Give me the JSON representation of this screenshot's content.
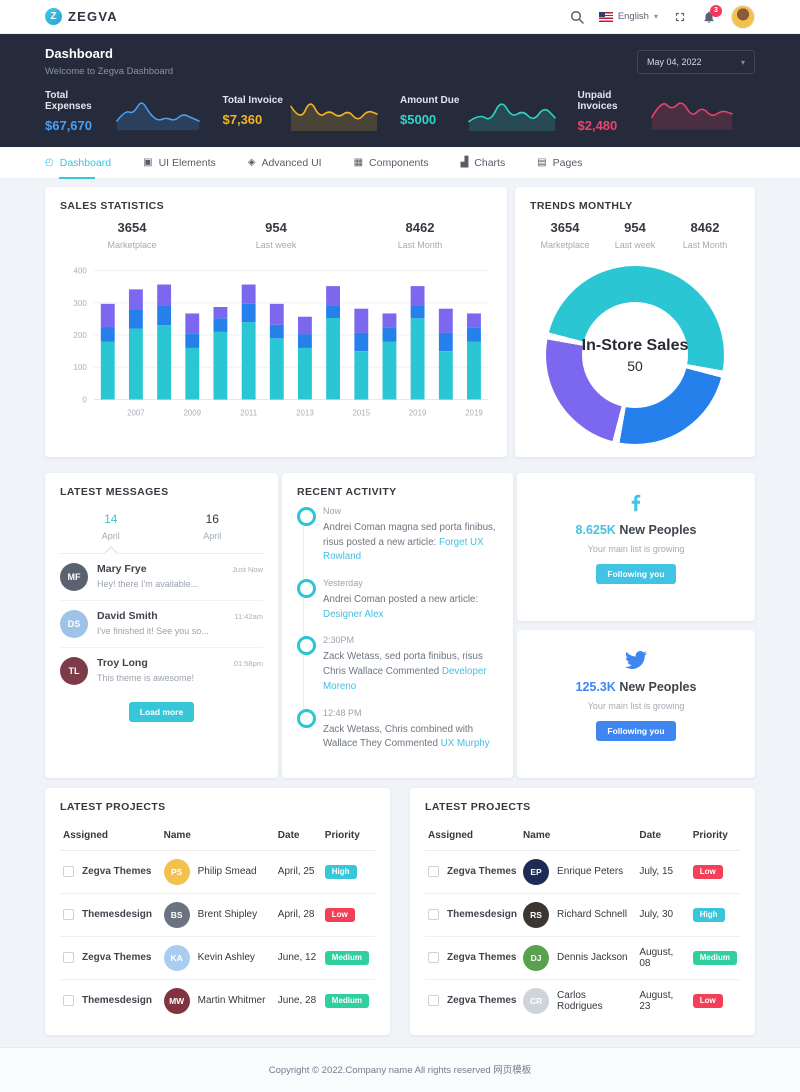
{
  "navbar": {
    "brand": "ZEGVA",
    "logo_letter": "Z",
    "language": "English",
    "notification_count": "3"
  },
  "page_header": {
    "title": "Dashboard",
    "subtitle": "Welcome to Zegva Dashboard",
    "date_select": "May 04, 2022",
    "stats": [
      {
        "label": "Total Expenses",
        "value": "$67,670",
        "color": "#4a9ff7"
      },
      {
        "label": "Total Invoice",
        "value": "$7,360",
        "color": "#f5b225"
      },
      {
        "label": "Amount Due",
        "value": "$5000",
        "color": "#2ed5c9"
      },
      {
        "label": "Unpaid Invoices",
        "value": "$2,480",
        "color": "#f2406a"
      }
    ]
  },
  "tabs": [
    {
      "label": "Dashboard",
      "icon": "dashboard-icon",
      "glyph": "◴",
      "active": true
    },
    {
      "label": "UI Elements",
      "icon": "ui-elements-icon",
      "glyph": "▣"
    },
    {
      "label": "Advanced UI",
      "icon": "advanced-ui-icon",
      "glyph": "◈"
    },
    {
      "label": "Components",
      "icon": "components-icon",
      "glyph": "▦"
    },
    {
      "label": "Charts",
      "icon": "charts-icon",
      "glyph": "▟"
    },
    {
      "label": "Pages",
      "icon": "pages-icon",
      "glyph": "▤"
    }
  ],
  "sales_statistics": {
    "title": "SALES STATISTICS",
    "summary": [
      {
        "value": "3654",
        "label": "Marketplace"
      },
      {
        "value": "954",
        "label": "Last week"
      },
      {
        "value": "8462",
        "label": "Last Month"
      }
    ]
  },
  "trends_monthly": {
    "title": "TRENDS MONTHLY",
    "summary": [
      {
        "value": "3654",
        "label": "Marketplace"
      },
      {
        "value": "954",
        "label": "Last week"
      },
      {
        "value": "8462",
        "label": "Last Month"
      }
    ]
  },
  "chart_data": [
    {
      "id": "sales-bars",
      "type": "bar",
      "stacked": true,
      "title": "Sales Statistics",
      "ylim": [
        0,
        400
      ],
      "yticks": [
        0,
        100,
        200,
        300,
        400
      ],
      "x_tick_labels": [
        "2007",
        "2009",
        "2011",
        "2013",
        "2015",
        "2019",
        "2019"
      ],
      "series": [
        {
          "name": "bottom-segment",
          "color": "#2bc6d4",
          "values": [
            180,
            220,
            230,
            160,
            210,
            240,
            190,
            160,
            253,
            150,
            180,
            252,
            150,
            180
          ]
        },
        {
          "name": "middle-segment",
          "color": "#2680eb",
          "values": [
            45,
            58,
            62,
            45,
            42,
            57,
            42,
            43,
            39,
            57,
            42,
            40,
            57,
            42
          ]
        },
        {
          "name": "top-segment",
          "color": "#7b68ee",
          "values": [
            72,
            64,
            65,
            62,
            35,
            60,
            65,
            54,
            60,
            75,
            45,
            60,
            75,
            45
          ]
        }
      ]
    },
    {
      "id": "trends-donut",
      "type": "pie",
      "center_title": "In-Store Sales",
      "center_value": "50",
      "values": [
        50,
        25,
        25
      ],
      "colors": [
        "#2bc6d4",
        "#2680eb",
        "#7b68ee"
      ],
      "start_angle_deg": -80
    },
    {
      "id": "header-sparklines",
      "type": "area",
      "series": [
        {
          "name": "Total Expenses",
          "color": "#4a9ff7",
          "values": [
            2,
            5,
            4,
            8,
            4,
            2,
            3,
            2,
            4,
            3,
            2
          ]
        },
        {
          "name": "Total Invoice",
          "color": "#f5b225",
          "values": [
            6,
            2,
            8,
            3,
            5,
            3,
            5,
            2,
            5,
            4
          ]
        },
        {
          "name": "Amount Due",
          "color": "#2ed5c9",
          "values": [
            2,
            4,
            2,
            8,
            3,
            5,
            2,
            6,
            3
          ]
        },
        {
          "name": "Unpaid Invoices",
          "color": "#f2406a",
          "values": [
            3,
            8,
            5,
            8,
            3,
            6,
            3,
            5,
            4
          ]
        }
      ]
    }
  ],
  "latest_messages": {
    "title": "LATEST MESSAGES",
    "load_more": "Load more",
    "tabs": [
      {
        "day": "14",
        "month": "April",
        "active": true
      },
      {
        "day": "16",
        "month": "April"
      }
    ],
    "messages": [
      {
        "name": "Mary Frye",
        "preview": "Hey! there I'm available...",
        "time": "Just Now",
        "avatar_bg": "#5a6270"
      },
      {
        "name": "David Smith",
        "preview": "I've finished it! See you so...",
        "time": "11:42am",
        "avatar_bg": "#9fc3e8"
      },
      {
        "name": "Troy Long",
        "preview": "This theme is awesome!",
        "time": "01:58pm",
        "avatar_bg": "#7d3b47"
      }
    ]
  },
  "recent_activity": {
    "title": "RECENT ACTIVITY",
    "items": [
      {
        "time": "Now",
        "text": "Andrei Coman magna sed porta finibus, risus posted a new article: ",
        "link": "Forget UX Rowland"
      },
      {
        "time": "Yesterday",
        "text": "Andrei Coman posted a new article: ",
        "link": "Designer Alex"
      },
      {
        "time": "2:30PM",
        "text": "Zack Wetass, sed porta finibus, risus Chris Wallace Commented ",
        "link": "Developer Moreno"
      },
      {
        "time": "12:48 PM",
        "text": "Zack Wetass, Chris combined with Wallace They Commented ",
        "link": "UX Murphy"
      }
    ]
  },
  "social_cards": [
    {
      "network": "facebook",
      "stat": "8.625K",
      "label": "New Peoples",
      "subtitle": "Your main list is growing",
      "button": "Following you",
      "color": "#41c3e4"
    },
    {
      "network": "twitter",
      "stat": "125.3K",
      "label": "New Peoples",
      "subtitle": "Your main list is growing",
      "button": "Following you",
      "color": "#3f86f0"
    }
  ],
  "project_cards": [
    {
      "title": "LATEST PROJECTS",
      "columns": [
        "Assigned",
        "Name",
        "Date",
        "Priority"
      ],
      "rows": [
        {
          "assigned": "Zegva Themes",
          "name": "Philip Smead",
          "date": "April, 25",
          "priority": "High",
          "priority_color": "#38c6d9",
          "avatar_bg": "#f2c14e"
        },
        {
          "assigned": "Themesdesign",
          "name": "Brent Shipley",
          "date": "April, 28",
          "priority": "Low",
          "priority_color": "#f44057",
          "avatar_bg": "#6b7280"
        },
        {
          "assigned": "Zegva Themes",
          "name": "Kevin Ashley",
          "date": "June, 12",
          "priority": "Medium",
          "priority_color": "#2fcfa0",
          "avatar_bg": "#a9cdf0"
        },
        {
          "assigned": "Themesdesign",
          "name": "Martin Whitmer",
          "date": "June, 28",
          "priority": "Medium",
          "priority_color": "#2fcfa0",
          "avatar_bg": "#81333f"
        }
      ]
    },
    {
      "title": "LATEST PROJECTS",
      "columns": [
        "Assigned",
        "Name",
        "Date",
        "Priority"
      ],
      "rows": [
        {
          "assigned": "Zegva Themes",
          "name": "Enrique Peters",
          "date": "July, 15",
          "priority": "Low",
          "priority_color": "#f44057",
          "avatar_bg": "#1f2a56"
        },
        {
          "assigned": "Themesdesign",
          "name": "Richard Schnell",
          "date": "July, 30",
          "priority": "High",
          "priority_color": "#38c6d9",
          "avatar_bg": "#3b3632"
        },
        {
          "assigned": "Zegva Themes",
          "name": "Dennis Jackson",
          "date": "August, 08",
          "priority": "Medium",
          "priority_color": "#2fcfa0",
          "avatar_bg": "#59a14f"
        },
        {
          "assigned": "Zegva Themes",
          "name": "Carlos Rodrigues",
          "date": "August, 23",
          "priority": "Low",
          "priority_color": "#f44057",
          "avatar_bg": "#cfd4da"
        }
      ]
    }
  ],
  "footer": {
    "text": "Copyright © 2022.Company name All rights reserved 网页模板"
  }
}
